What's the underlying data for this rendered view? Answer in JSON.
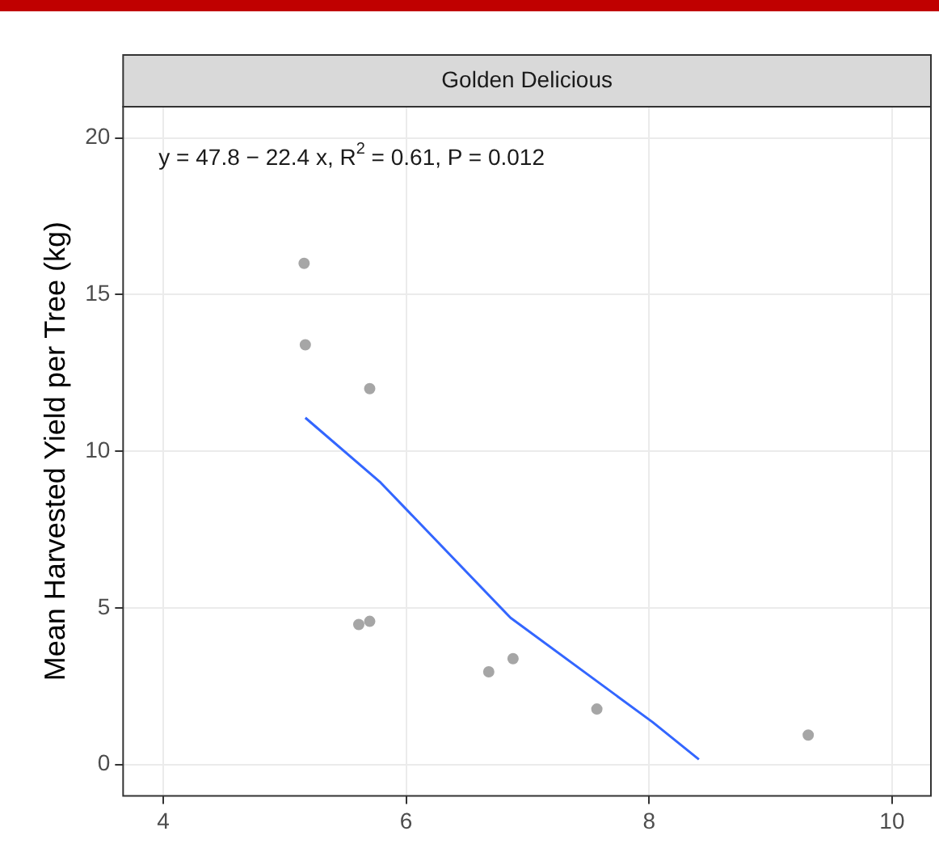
{
  "chart_data": {
    "type": "scatter",
    "title": "Golden Delicious",
    "ylabel": "Mean Harvested Yield per Tree (kg)",
    "annotations": [
      "y = 47.8 − 22.4 x, R$^{2}$ = 0.61, P = 0.012"
    ],
    "xlim": [
      3.67,
      10.32
    ],
    "xticks": [
      4,
      6,
      8,
      10
    ],
    "ylim": [
      -1,
      21
    ],
    "yticks": [
      0,
      5,
      10,
      15,
      20
    ],
    "grid": true,
    "legend": false,
    "marker": "circle",
    "series": [
      {
        "type": "scatter",
        "color": "#a6a6a6",
        "x": [
          5.16,
          5.17,
          5.7,
          5.61,
          5.7,
          6.68,
          6.88,
          7.57,
          9.31
        ],
        "values": [
          16.0,
          13.4,
          12.0,
          4.47,
          4.57,
          2.96,
          3.38,
          1.77,
          0.94
        ]
      },
      {
        "type": "line",
        "color": "#3366ff",
        "marker": "none",
        "line_style": "solid",
        "x": [
          5.17,
          5.79,
          6.86,
          8.03,
          8.41
        ],
        "values": [
          11.07,
          9.0,
          4.68,
          1.35,
          0.16
        ]
      }
    ]
  }
}
